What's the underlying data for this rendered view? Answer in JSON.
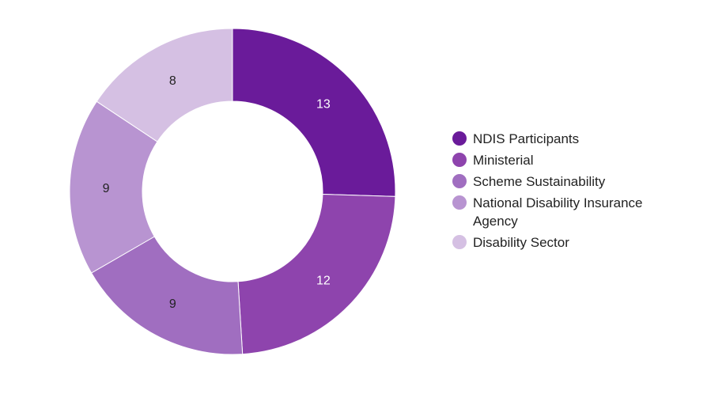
{
  "chart_data": {
    "type": "pie",
    "variant": "donut",
    "categories": [
      "NDIS Participants",
      "Ministerial",
      "Scheme Sustainability",
      "National Disability Insurance Agency",
      "Disability Sector"
    ],
    "values": [
      13,
      12,
      9,
      9,
      8
    ],
    "colors": [
      "#6a1b9a",
      "#8e44ad",
      "#a06ec0",
      "#b894d1",
      "#d5c0e3"
    ],
    "label_colors": [
      "#ffffff",
      "#ffffff",
      "#222222",
      "#222222",
      "#222222"
    ],
    "data_labels": [
      "13",
      "12",
      "9",
      "9",
      "8"
    ],
    "legend_position": "right",
    "start_angle": "top, clockwise"
  }
}
